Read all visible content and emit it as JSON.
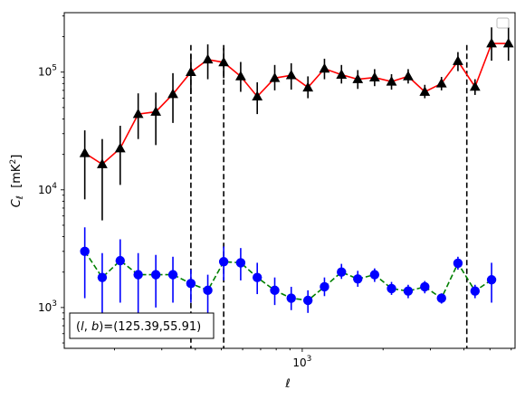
{
  "chart_data": {
    "type": "scatter",
    "xscale": "log",
    "yscale": "log",
    "xlim": [
      130,
      6200
    ],
    "ylim": [
      450,
      320000
    ],
    "xlabel": "ℓ",
    "ylabel": "C_ℓ  [mK²]",
    "x_tick_labels": [
      {
        "value": 1000,
        "base": "10",
        "exp": "3"
      }
    ],
    "y_tick_labels": [
      {
        "value": 1000,
        "base": "10",
        "exp": "3"
      },
      {
        "value": 10000,
        "base": "10",
        "exp": "4"
      },
      {
        "value": 100000,
        "base": "10",
        "exp": "5"
      }
    ],
    "annotation": "(l,b)=(125.39,55.91)",
    "vlines": [
      385,
      510,
      4100
    ],
    "legend": "top-right",
    "colors": {
      "upper_line": "#ff0000",
      "upper_marker": "#000000",
      "lower_line": "#008000",
      "lower_marker": "#0000ff"
    },
    "series": [
      {
        "marker": "triangle",
        "line_style": "solid",
        "x": [
          155,
          180,
          210,
          245,
          285,
          330,
          385,
          445,
          510,
          590,
          680,
          790,
          910,
          1050,
          1210,
          1400,
          1610,
          1860,
          2150,
          2480,
          2860,
          3300,
          3800,
          4400,
          5070,
          5860
        ],
        "y": [
          20500,
          16500,
          22500,
          44000,
          46000,
          65000,
          100000,
          128000,
          121000,
          92000,
          62000,
          89000,
          94000,
          74000,
          107000,
          95000,
          87000,
          90000,
          83000,
          92000,
          68000,
          80000,
          124000,
          75000,
          175000,
          175000
        ],
        "y_low": [
          8300,
          5500,
          11000,
          27000,
          24000,
          37000,
          65000,
          87000,
          89000,
          68000,
          44000,
          70000,
          71000,
          60000,
          87000,
          80000,
          72000,
          76000,
          71000,
          80000,
          60000,
          70000,
          102000,
          64000,
          125000,
          125000
        ],
        "y_high": [
          32000,
          27000,
          35000,
          66000,
          67000,
          98000,
          142000,
          172000,
          160000,
          122000,
          82000,
          115000,
          119000,
          92000,
          130000,
          115000,
          104000,
          106000,
          96000,
          106000,
          78000,
          91000,
          148000,
          87000,
          240000,
          240000
        ]
      },
      {
        "marker": "circle",
        "line_style": "dashed",
        "x": [
          155,
          180,
          210,
          245,
          285,
          330,
          385,
          445,
          510,
          590,
          680,
          790,
          910,
          1050,
          1210,
          1400,
          1610,
          1860,
          2150,
          2480,
          2860,
          3300,
          3800,
          4400,
          5070
        ],
        "y": [
          3000,
          1800,
          2500,
          1900,
          1900,
          1900,
          1600,
          1400,
          2450,
          2400,
          1800,
          1400,
          1200,
          1150,
          1500,
          2000,
          1750,
          1900,
          1450,
          1380,
          1500,
          1200,
          2380,
          1380,
          1720
        ],
        "y_low": [
          1200,
          700,
          1100,
          900,
          1000,
          1100,
          1100,
          900,
          1700,
          1700,
          1300,
          1050,
          950,
          900,
          1250,
          1750,
          1500,
          1650,
          1280,
          1200,
          1320,
          1080,
          2100,
          1200,
          1100
        ],
        "y_high": [
          4800,
          2900,
          3800,
          2900,
          2800,
          2700,
          2100,
          1900,
          3300,
          3200,
          2400,
          1800,
          1500,
          1400,
          1800,
          2350,
          2050,
          2150,
          1650,
          1560,
          1680,
          1320,
          2700,
          1560,
          2400
        ]
      }
    ]
  }
}
